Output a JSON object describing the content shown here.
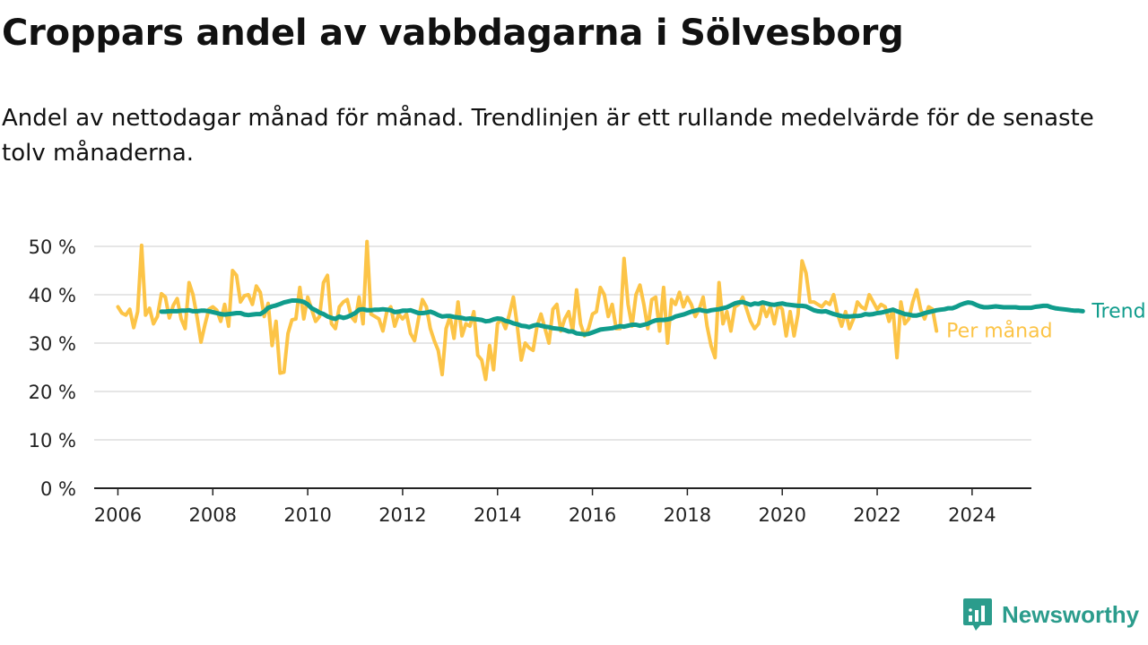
{
  "title": "Croppars andel av vabbdagarna i Sölvesborg",
  "subtitle": "Andel av nettodagar månad för månad. Trendlinjen är ett rullande medelvärde för de senaste tolv månaderna.",
  "brand": {
    "name": "Newsworthy",
    "icon": "bar-chart-logo-icon"
  },
  "colors": {
    "monthly": "#fcc447",
    "trend": "#109c8c",
    "grid": "#dddddd",
    "axis": "#222222"
  },
  "chart_data": {
    "type": "line",
    "title": "Croppars andel av vabbdagarna i Sölvesborg",
    "xlabel": "",
    "ylabel": "",
    "xlim": [
      2005.5,
      2025.25
    ],
    "ylim": [
      0,
      50
    ],
    "y_ticks": [
      0,
      10,
      20,
      30,
      40,
      50
    ],
    "y_tick_labels": [
      "0 %",
      "10 %",
      "20 %",
      "30 %",
      "40 %",
      "50 %"
    ],
    "x_ticks": [
      2006,
      2008,
      2010,
      2012,
      2014,
      2016,
      2018,
      2020,
      2022,
      2024
    ],
    "x_tick_labels": [
      "2006",
      "2008",
      "2010",
      "2012",
      "2014",
      "2016",
      "2018",
      "2020",
      "2022",
      "2024"
    ],
    "grid": true,
    "series": [
      {
        "name": "Per månad",
        "x_start": 2006.0,
        "x_step": 0.083333,
        "values": [
          37.5,
          36.2,
          35.8,
          37.0,
          33.2,
          36.5,
          50.2,
          35.8,
          37.2,
          34.0,
          35.5,
          40.2,
          39.5,
          35.2,
          37.8,
          39.2,
          35.0,
          33.0,
          42.5,
          40.0,
          35.5,
          30.2,
          33.8,
          37.0,
          37.5,
          36.8,
          34.5,
          38.0,
          33.5,
          45.0,
          44.0,
          38.5,
          39.8,
          40.0,
          38.0,
          41.8,
          40.5,
          35.5,
          38.2,
          29.5,
          34.5,
          23.8,
          24.0,
          32.0,
          34.8,
          35.0,
          41.5,
          35.0,
          39.5,
          37.0,
          34.5,
          35.5,
          42.5,
          44.0,
          34.0,
          33.0,
          37.5,
          38.5,
          39.0,
          35.5,
          34.5,
          39.5,
          34.0,
          51.0,
          36.0,
          35.5,
          35.0,
          32.5,
          36.5,
          37.5,
          33.5,
          36.0,
          35.0,
          36.0,
          32.0,
          30.5,
          35.0,
          39.0,
          37.5,
          33.0,
          30.5,
          28.5,
          23.5,
          33.0,
          35.5,
          31.0,
          38.5,
          31.5,
          34.0,
          33.5,
          36.5,
          27.5,
          26.5,
          22.5,
          29.5,
          24.5,
          34.0,
          35.0,
          33.0,
          36.0,
          39.5,
          33.5,
          26.5,
          30.0,
          29.0,
          28.5,
          33.5,
          36.0,
          33.0,
          30.0,
          37.0,
          38.0,
          32.5,
          35.0,
          36.5,
          32.5,
          41.0,
          34.0,
          31.5,
          33.0,
          36.0,
          36.5,
          41.5,
          40.0,
          35.5,
          38.0,
          33.0,
          33.0,
          47.5,
          38.0,
          33.5,
          40.0,
          42.0,
          38.0,
          33.0,
          39.0,
          39.5,
          32.5,
          41.5,
          30.0,
          39.0,
          38.0,
          40.5,
          37.5,
          39.5,
          38.0,
          35.5,
          37.0,
          39.5,
          33.5,
          29.5,
          27.0,
          42.5,
          34.0,
          36.5,
          32.5,
          37.5,
          38.0,
          39.5,
          37.0,
          34.5,
          33.0,
          34.0,
          38.0,
          35.5,
          37.5,
          34.0,
          38.0,
          37.0,
          31.5,
          36.5,
          31.5,
          36.0,
          47.0,
          44.5,
          38.5,
          38.5,
          38.0,
          37.5,
          38.5,
          38.0,
          40.0,
          36.0,
          33.5,
          36.5,
          33.0,
          35.0,
          38.5,
          37.5,
          37.0,
          40.0,
          38.5,
          37.0,
          38.0,
          37.5,
          34.5,
          37.0,
          27.0,
          38.5,
          34.0,
          35.0,
          38.5,
          41.0,
          37.0,
          35.0,
          37.5,
          37.0,
          32.5
        ]
      },
      {
        "name": "Trend",
        "x_start": 2006.917,
        "x_step": 0.083333,
        "values": [
          36.5,
          36.5,
          36.6,
          36.6,
          36.6,
          36.7,
          36.7,
          36.8,
          36.6,
          36.6,
          36.7,
          36.7,
          36.6,
          36.4,
          36.2,
          36.0,
          35.9,
          36.0,
          36.1,
          36.2,
          36.2,
          35.9,
          35.8,
          35.9,
          36.0,
          36.0,
          36.5,
          37.3,
          37.6,
          37.8,
          38.1,
          38.4,
          38.6,
          38.8,
          38.8,
          38.7,
          38.5,
          38.0,
          37.2,
          36.8,
          36.3,
          36.0,
          35.5,
          35.2,
          35.0,
          35.5,
          35.2,
          35.4,
          35.8,
          36.2,
          36.9,
          37.0,
          36.8,
          36.8,
          36.9,
          36.9,
          37.0,
          36.9,
          36.8,
          36.4,
          36.5,
          36.7,
          36.7,
          36.8,
          36.5,
          36.2,
          36.2,
          36.3,
          36.5,
          36.2,
          35.8,
          35.5,
          35.6,
          35.6,
          35.4,
          35.3,
          35.2,
          35.0,
          35.1,
          35.0,
          34.9,
          34.8,
          34.5,
          34.6,
          34.9,
          35.1,
          35.0,
          34.6,
          34.4,
          34.1,
          33.9,
          33.6,
          33.5,
          33.3,
          33.6,
          33.8,
          33.6,
          33.4,
          33.3,
          33.1,
          33.0,
          32.9,
          32.7,
          32.4,
          32.4,
          32.0,
          31.9,
          31.8,
          31.9,
          32.2,
          32.5,
          32.8,
          32.9,
          33.0,
          33.1,
          33.3,
          33.5,
          33.4,
          33.6,
          33.8,
          33.8,
          33.6,
          33.8,
          34.0,
          34.4,
          34.7,
          34.8,
          34.8,
          34.9,
          35.1,
          35.5,
          35.7,
          35.9,
          36.2,
          36.5,
          36.7,
          36.9,
          36.7,
          36.6,
          36.8,
          36.9,
          37.0,
          37.2,
          37.4,
          37.8,
          38.2,
          38.4,
          38.5,
          38.2,
          37.9,
          38.2,
          38.1,
          38.4,
          38.2,
          38.0,
          37.9,
          38.1,
          38.2,
          38.0,
          37.9,
          37.8,
          37.7,
          37.7,
          37.6,
          37.2,
          36.8,
          36.6,
          36.5,
          36.6,
          36.3,
          36.0,
          35.8,
          35.6,
          35.5,
          35.5,
          35.6,
          35.6,
          35.7,
          36.0,
          35.9,
          36.0,
          36.2,
          36.3,
          36.5,
          36.7,
          36.9,
          36.6,
          36.3,
          36.0,
          35.9,
          35.7,
          35.7,
          35.9,
          36.2,
          36.4,
          36.6,
          36.8,
          36.9,
          37.0,
          37.2,
          37.2,
          37.5,
          37.9,
          38.2,
          38.4,
          38.3,
          37.9,
          37.6,
          37.4,
          37.4,
          37.5,
          37.6,
          37.5,
          37.4,
          37.4,
          37.4,
          37.4,
          37.3,
          37.3,
          37.3,
          37.3,
          37.5,
          37.6,
          37.7,
          37.7,
          37.4,
          37.2,
          37.1,
          37.0,
          36.9,
          36.8,
          36.7,
          36.7,
          36.6
        ]
      }
    ],
    "legend": {
      "placement": "right",
      "entries": [
        "Trend",
        "Per månad"
      ]
    }
  }
}
